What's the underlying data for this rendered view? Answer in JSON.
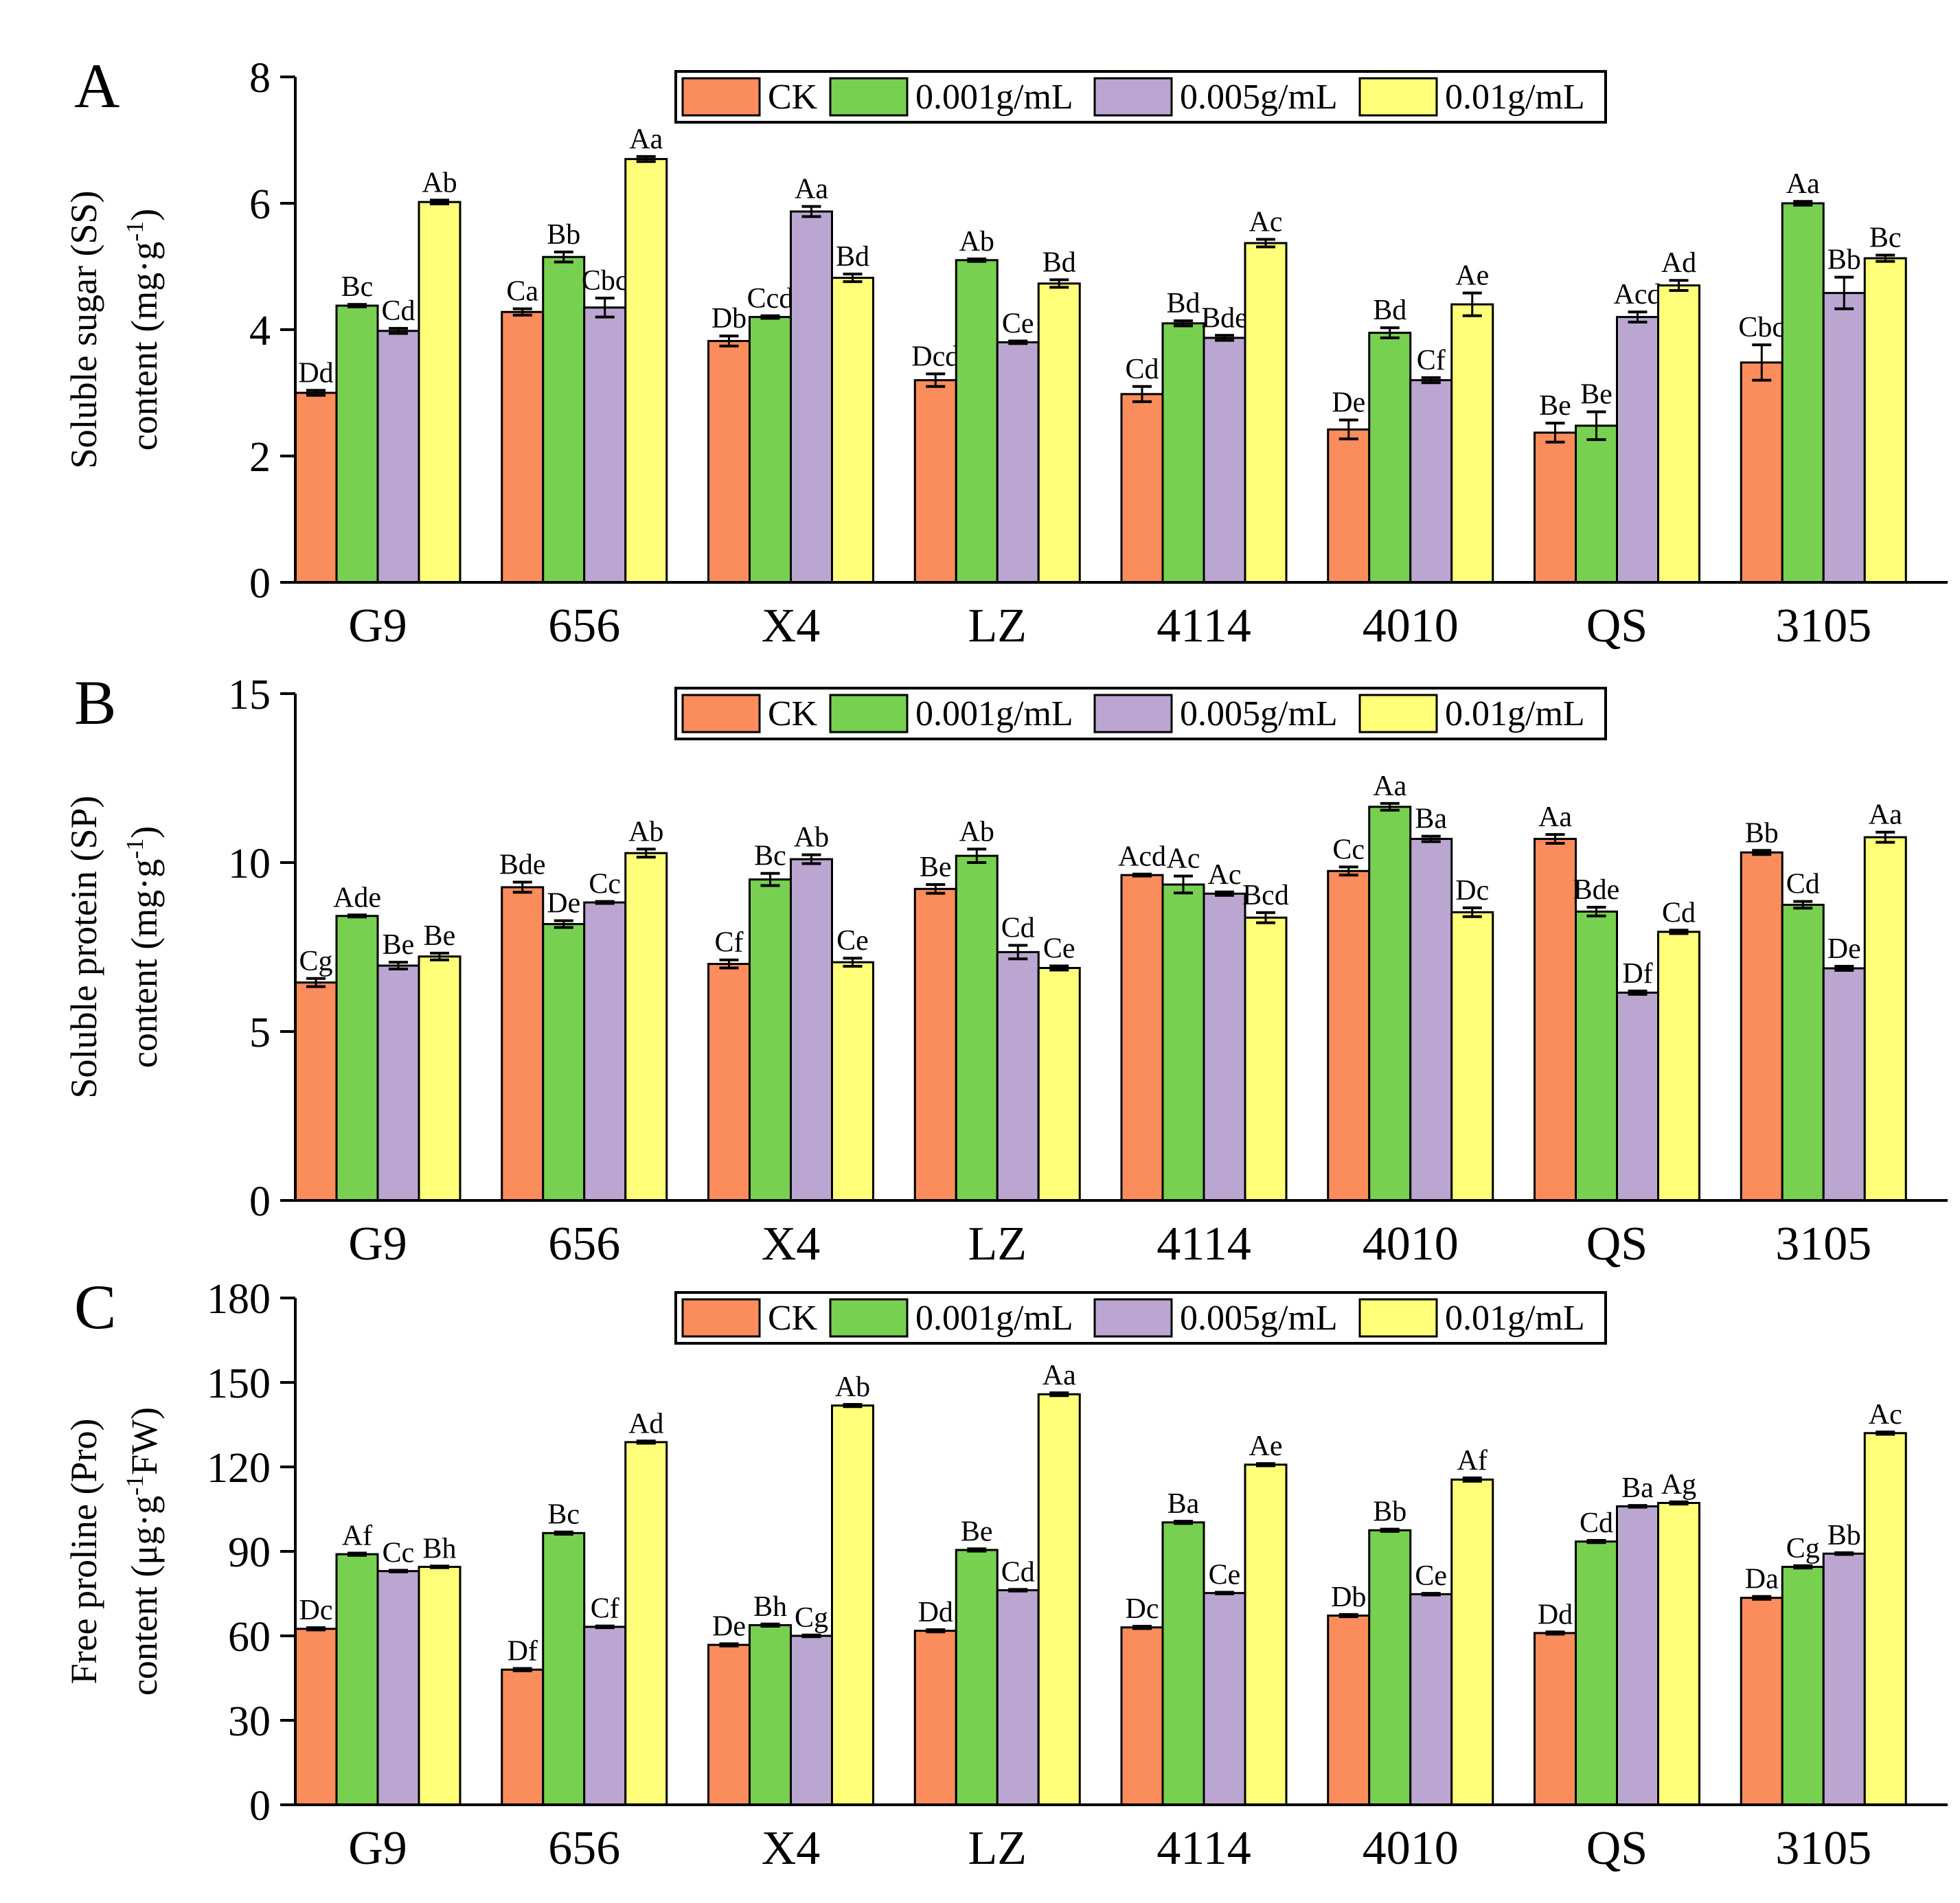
{
  "legend": [
    "CK",
    "0.001g/mL",
    "0.005g/mL",
    "0.01g/mL"
  ],
  "colors": {
    "CK": "#fb8c5c",
    "0.001g/mL": "#78d050",
    "0.005g/mL": "#bba6d1",
    "0.01g/mL": "#ffff7a",
    "axis": "#000000"
  },
  "chart_data": [
    {
      "type": "bar",
      "panel_label": "A",
      "ylabel_line1": "Soluble sugar (SS)",
      "ylabel_line2_pre": "content (mg·g",
      "ylabel_sup": "-1",
      "ylabel_line2_post": ")",
      "ylim": [
        0,
        8
      ],
      "yticks": [
        0,
        2,
        4,
        6,
        8
      ],
      "categories": [
        "G9",
        "656",
        "X4",
        "LZ",
        "4114",
        "4010",
        "QS",
        "3105"
      ],
      "series": [
        {
          "name": "CK",
          "values": [
            3.0,
            4.28,
            3.82,
            3.2,
            2.98,
            2.42,
            2.37,
            3.48
          ],
          "errors": [
            0.04,
            0.05,
            0.08,
            0.1,
            0.12,
            0.15,
            0.15,
            0.28
          ],
          "labels": [
            "Dd",
            "Ca",
            "Db",
            "Dcd",
            "Cd",
            "De",
            "Be",
            "Cbc"
          ]
        },
        {
          "name": "0.001g/mL",
          "values": [
            4.38,
            5.15,
            4.2,
            5.1,
            4.1,
            3.95,
            2.48,
            6.0
          ],
          "errors": [
            0.02,
            0.08,
            0.02,
            0.02,
            0.04,
            0.08,
            0.22,
            0.03
          ],
          "labels": [
            "Bc",
            "Bb",
            "Ccd",
            "Ab",
            "Bd",
            "Bd",
            "Be",
            "Aa"
          ]
        },
        {
          "name": "0.005g/mL",
          "values": [
            3.98,
            4.35,
            5.87,
            3.8,
            3.87,
            3.2,
            4.2,
            4.58
          ],
          "errors": [
            0.04,
            0.15,
            0.08,
            0.02,
            0.04,
            0.04,
            0.08,
            0.25
          ],
          "labels": [
            "Cd",
            "Cbc",
            "Aa",
            "Ce",
            "Bde",
            "Cf",
            "Acd",
            "Bb"
          ]
        },
        {
          "name": "0.01g/mL",
          "values": [
            6.02,
            6.7,
            4.82,
            4.73,
            5.37,
            4.4,
            4.7,
            5.13
          ],
          "errors": [
            0.03,
            0.04,
            0.06,
            0.06,
            0.06,
            0.18,
            0.08,
            0.05
          ],
          "labels": [
            "Ab",
            "Aa",
            "Bd",
            "Bd",
            "Ac",
            "Ae",
            "Ad",
            "Bc"
          ]
        }
      ]
    },
    {
      "type": "bar",
      "panel_label": "B",
      "ylabel_line1": "Soluble protein (SP)",
      "ylabel_line2_pre": "content (mg·g",
      "ylabel_sup": "-1",
      "ylabel_line2_post": ")",
      "ylim": [
        0,
        15
      ],
      "yticks": [
        0,
        5,
        10,
        15
      ],
      "categories": [
        "G9",
        "656",
        "X4",
        "LZ",
        "4114",
        "4010",
        "QS",
        "3105"
      ],
      "series": [
        {
          "name": "CK",
          "values": [
            6.45,
            9.27,
            7.0,
            9.22,
            9.63,
            9.75,
            10.7,
            10.3
          ],
          "errors": [
            0.12,
            0.15,
            0.12,
            0.13,
            0.03,
            0.12,
            0.13,
            0.06
          ],
          "labels": [
            "Cg",
            "Bde",
            "Cf",
            "Be",
            "Acd",
            "Cc",
            "Aa",
            "Bb"
          ]
        },
        {
          "name": "0.001g/mL",
          "values": [
            8.42,
            8.18,
            9.5,
            10.2,
            9.35,
            11.65,
            8.55,
            8.75
          ],
          "errors": [
            0.03,
            0.1,
            0.18,
            0.2,
            0.25,
            0.1,
            0.13,
            0.1
          ],
          "labels": [
            "Ade",
            "De",
            "Bc",
            "Ab",
            "Ac",
            "Aa",
            "Bde",
            "Cd"
          ]
        },
        {
          "name": "0.005g/mL",
          "values": [
            6.95,
            8.82,
            10.1,
            7.35,
            9.08,
            10.7,
            6.15,
            6.87
          ],
          "errors": [
            0.1,
            0.03,
            0.13,
            0.2,
            0.05,
            0.08,
            0.05,
            0.06
          ],
          "labels": [
            "Be",
            "Cc",
            "Ab",
            "Cd",
            "Ac",
            "Ba",
            "Df",
            "De"
          ]
        },
        {
          "name": "0.01g/mL",
          "values": [
            7.22,
            10.28,
            7.05,
            6.88,
            8.37,
            8.53,
            7.95,
            10.75
          ],
          "errors": [
            0.1,
            0.12,
            0.12,
            0.06,
            0.15,
            0.13,
            0.05,
            0.15
          ],
          "labels": [
            "Be",
            "Ab",
            "Ce",
            "Ce",
            "Bcd",
            "Dc",
            "Cd",
            "Aa"
          ]
        }
      ]
    },
    {
      "type": "bar",
      "panel_label": "C",
      "ylabel_line1": "Free proline (Pro)",
      "ylabel_line2_pre": "content (μg·g",
      "ylabel_sup": "-1",
      "ylabel_line2_post": "FW)",
      "ylim": [
        0,
        180
      ],
      "yticks": [
        0,
        30,
        60,
        90,
        120,
        150,
        180
      ],
      "categories": [
        "G9",
        "656",
        "X4",
        "LZ",
        "4114",
        "4010",
        "QS",
        "3105"
      ],
      "series": [
        {
          "name": "CK",
          "values": [
            62.5,
            48.0,
            56.8,
            61.8,
            63.0,
            67.2,
            61.0,
            73.5
          ],
          "errors": [
            0.4,
            0.4,
            0.4,
            0.4,
            0.4,
            0.4,
            0.4,
            0.5
          ],
          "labels": [
            "Dc",
            "Df",
            "De",
            "Dd",
            "Dc",
            "Db",
            "Dd",
            "Da"
          ]
        },
        {
          "name": "0.001g/mL",
          "values": [
            89.0,
            96.5,
            63.8,
            90.5,
            100.3,
            97.5,
            93.5,
            84.5
          ],
          "errors": [
            0.4,
            0.4,
            0.4,
            0.4,
            0.4,
            0.4,
            0.4,
            0.4
          ],
          "labels": [
            "Af",
            "Bc",
            "Bh",
            "Be",
            "Ba",
            "Bb",
            "Cd",
            "Cg"
          ]
        },
        {
          "name": "0.005g/mL",
          "values": [
            83.0,
            63.2,
            60.0,
            76.2,
            75.2,
            74.8,
            106.0,
            89.2
          ],
          "errors": [
            0.3,
            0.3,
            0.3,
            0.3,
            0.3,
            0.3,
            0.3,
            0.3
          ],
          "labels": [
            "Cc",
            "Cf",
            "Cg",
            "Cd",
            "Ce",
            "Ce",
            "Ba",
            "Bb"
          ]
        },
        {
          "name": "0.01g/mL",
          "values": [
            84.5,
            128.8,
            141.8,
            145.8,
            120.8,
            115.5,
            107.2,
            132.0
          ],
          "errors": [
            0.3,
            0.4,
            0.4,
            0.5,
            0.4,
            0.6,
            0.4,
            0.4
          ],
          "labels": [
            "Bh",
            "Ad",
            "Ab",
            "Aa",
            "Ae",
            "Af",
            "Ag",
            "Ac"
          ]
        }
      ]
    }
  ]
}
